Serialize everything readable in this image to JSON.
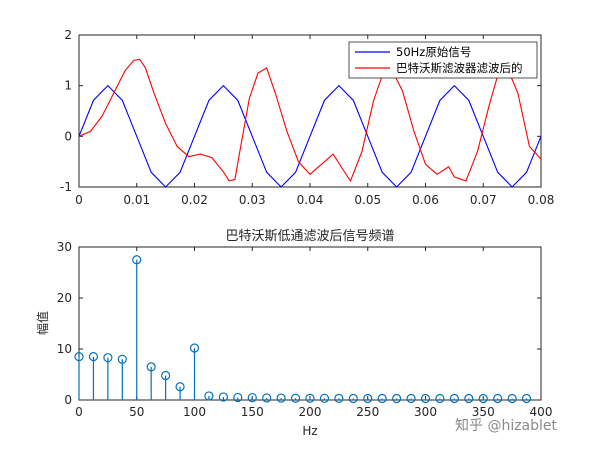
{
  "chart_data": [
    {
      "type": "line",
      "title": "",
      "xlabel": "",
      "ylabel": "",
      "xlim": [
        0,
        0.08
      ],
      "ylim": [
        -1,
        2
      ],
      "xticks": [
        "0",
        "0.01",
        "0.02",
        "0.03",
        "0.04",
        "0.05",
        "0.06",
        "0.07",
        "0.08"
      ],
      "yticks": [
        "-1",
        "0",
        "1",
        "2"
      ],
      "grid": false,
      "legend_position": "top-right",
      "series": [
        {
          "name": "50Hz原始信号",
          "color": "#0000ff",
          "x": [
            0,
            0.0025,
            0.005,
            0.0075,
            0.01,
            0.0125,
            0.015,
            0.0175,
            0.02,
            0.0225,
            0.025,
            0.0275,
            0.03,
            0.0325,
            0.035,
            0.0375,
            0.04,
            0.0425,
            0.045,
            0.0475,
            0.05,
            0.0525,
            0.055,
            0.0575,
            0.06,
            0.0625,
            0.065,
            0.0675,
            0.07,
            0.0725,
            0.075,
            0.0775,
            0.08
          ],
          "y": [
            0,
            0.71,
            1,
            0.71,
            0,
            -0.71,
            -1,
            -0.71,
            0,
            0.71,
            1,
            0.71,
            0,
            -0.71,
            -1,
            -0.71,
            0,
            0.71,
            1,
            0.71,
            0,
            -0.71,
            -1,
            -0.71,
            0,
            0.71,
            1,
            0.71,
            0,
            -0.71,
            -1,
            -0.71,
            0
          ]
        },
        {
          "name": "巴特沃斯滤波器滤波后的",
          "color": "#ff0000",
          "x": [
            0,
            0.002,
            0.004,
            0.006,
            0.008,
            0.0095,
            0.0105,
            0.0115,
            0.013,
            0.015,
            0.017,
            0.019,
            0.021,
            0.023,
            0.025,
            0.026,
            0.027,
            0.028,
            0.0295,
            0.031,
            0.0325,
            0.034,
            0.036,
            0.038,
            0.04,
            0.042,
            0.044,
            0.0455,
            0.047,
            0.049,
            0.051,
            0.0525,
            0.054,
            0.056,
            0.058,
            0.06,
            0.062,
            0.064,
            0.065,
            0.067,
            0.069,
            0.071,
            0.0725,
            0.074,
            0.076,
            0.078,
            0.08
          ],
          "y": [
            0,
            0.1,
            0.4,
            0.85,
            1.3,
            1.5,
            1.52,
            1.35,
            0.85,
            0.25,
            -0.2,
            -0.4,
            -0.35,
            -0.42,
            -0.7,
            -0.88,
            -0.85,
            -0.2,
            0.75,
            1.25,
            1.35,
            0.85,
            0.1,
            -0.5,
            -0.75,
            -0.55,
            -0.35,
            -0.62,
            -0.88,
            -0.3,
            0.7,
            1.2,
            1.35,
            0.9,
            0.1,
            -0.55,
            -0.75,
            -0.6,
            -0.8,
            -0.88,
            -0.3,
            0.6,
            1.2,
            1.4,
            0.85,
            -0.2,
            -0.45
          ]
        }
      ]
    },
    {
      "type": "stem",
      "title": "巴特沃斯低通滤波后信号频谱",
      "xlabel": "Hz",
      "ylabel": "幅值",
      "xlim": [
        0,
        400
      ],
      "ylim": [
        0,
        30
      ],
      "xticks": [
        "0",
        "50",
        "100",
        "150",
        "200",
        "250",
        "300",
        "350",
        "400"
      ],
      "yticks": [
        "0",
        "10",
        "20",
        "30"
      ],
      "grid": false,
      "color": "#0072bd",
      "x": [
        0,
        12.5,
        25,
        37.5,
        50,
        62.5,
        75,
        87.5,
        100,
        112.5,
        125,
        137.5,
        150,
        162.5,
        175,
        187.5,
        200,
        212.5,
        225,
        237.5,
        250,
        262.5,
        275,
        287.5,
        300,
        312.5,
        325,
        337.5,
        350,
        362.5,
        375,
        387.5
      ],
      "y": [
        8.5,
        8.5,
        8.3,
        8.0,
        27.5,
        6.5,
        4.8,
        2.6,
        10.2,
        0.8,
        0.6,
        0.5,
        0.45,
        0.4,
        0.38,
        0.35,
        0.35,
        0.33,
        0.32,
        0.3,
        0.3,
        0.3,
        0.3,
        0.3,
        0.3,
        0.3,
        0.3,
        0.3,
        0.3,
        0.3,
        0.3,
        0.3
      ]
    }
  ],
  "watermark": "知乎 @hizablet"
}
